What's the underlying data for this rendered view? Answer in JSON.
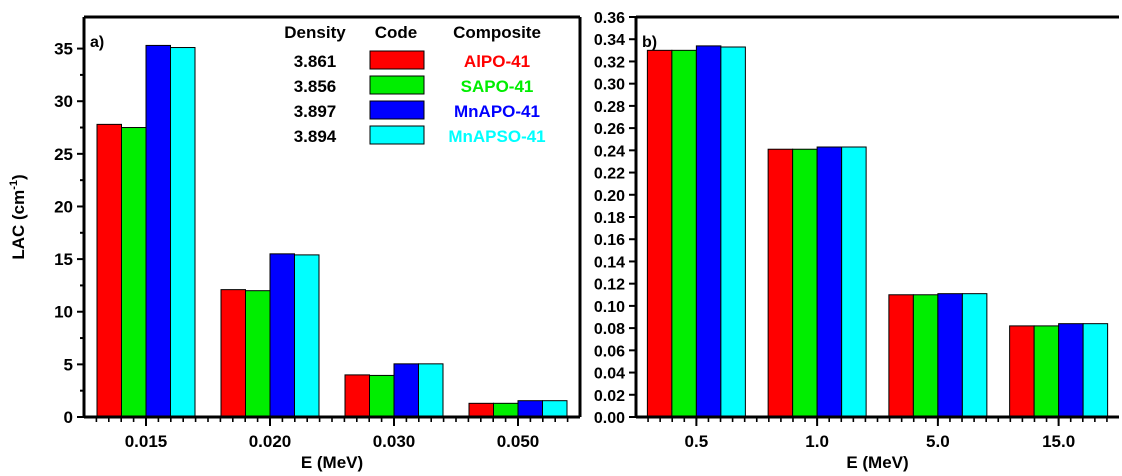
{
  "chart_data": [
    {
      "type": "bar",
      "panel_label": "a)",
      "xlabel": "E (MeV)",
      "ylabel": "LAC (cm",
      "ylabel_sup": "-1",
      "ylabel_close": ")",
      "categories": [
        "0.015",
        "0.020",
        "0.030",
        "0.050"
      ],
      "ylim": [
        0,
        38
      ],
      "yticks": [
        0,
        5,
        10,
        15,
        20,
        25,
        30,
        35
      ],
      "series": [
        {
          "name": "AlPO-41",
          "color": "#ff0000",
          "values": [
            27.8,
            12.1,
            4.0,
            1.3
          ]
        },
        {
          "name": "SAPO-41",
          "color": "#00ee00",
          "values": [
            27.5,
            12.0,
            3.95,
            1.3
          ]
        },
        {
          "name": "MnAPO-41",
          "color": "#0000ff",
          "values": [
            35.3,
            15.5,
            5.05,
            1.55
          ]
        },
        {
          "name": "MnAPSO-41",
          "color": "#00ffff",
          "values": [
            35.1,
            15.4,
            5.05,
            1.55
          ]
        }
      ],
      "legend": {
        "placement": "top-right",
        "headers": {
          "density": "Density",
          "code": "Code",
          "composite": "Composite"
        },
        "densities": [
          "3.861",
          "3.856",
          "3.897",
          "3.894"
        ]
      }
    },
    {
      "type": "bar",
      "panel_label": "b)",
      "xlabel": "E (MeV)",
      "categories": [
        "0.5",
        "1.0",
        "5.0",
        "15.0"
      ],
      "ylim": [
        0,
        0.36
      ],
      "yticks": [
        "0.00",
        "0.02",
        "0.04",
        "0.06",
        "0.08",
        "0.10",
        "0.12",
        "0.14",
        "0.16",
        "0.18",
        "0.20",
        "0.22",
        "0.24",
        "0.26",
        "0.28",
        "0.30",
        "0.32",
        "0.34",
        "0.36"
      ],
      "series": [
        {
          "name": "AlPO-41",
          "color": "#ff0000",
          "values": [
            0.33,
            0.241,
            0.11,
            0.082
          ]
        },
        {
          "name": "SAPO-41",
          "color": "#00ee00",
          "values": [
            0.33,
            0.241,
            0.11,
            0.082
          ]
        },
        {
          "name": "MnAPO-41",
          "color": "#0000ff",
          "values": [
            0.334,
            0.243,
            0.111,
            0.084
          ]
        },
        {
          "name": "MnAPSO-41",
          "color": "#00ffff",
          "values": [
            0.333,
            0.243,
            0.111,
            0.084
          ]
        }
      ]
    }
  ]
}
